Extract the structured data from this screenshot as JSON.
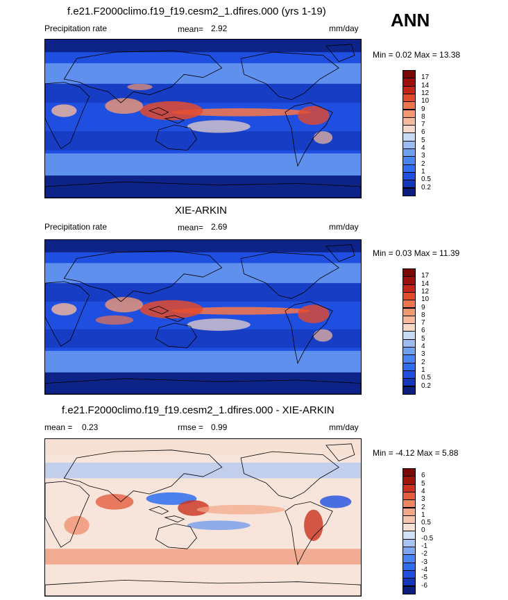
{
  "header": {
    "season": "ANN"
  },
  "panels": [
    {
      "title": "f.e21.F2000climo.f19_f19.cesm2_1.dfires.000 (yrs 1-19)",
      "left_label": "Precipitation rate",
      "stat1_label": "mean=",
      "stat1_value": "2.92",
      "stat2_label": "",
      "stat2_value": "",
      "units": "mm/day",
      "minmax": "Min =   0.02 Max =  13.38",
      "colorbar_labels": [
        "17",
        "14",
        "12",
        "10",
        "9",
        "8",
        "7",
        "6",
        "5",
        "4",
        "3",
        "2",
        "1",
        "0.5",
        "0.2"
      ],
      "map_kind": "model"
    },
    {
      "title": "XIE-ARKIN",
      "left_label": "Precipitation rate",
      "stat1_label": "mean=",
      "stat1_value": "2.69",
      "stat2_label": "",
      "stat2_value": "",
      "units": "mm/day",
      "minmax": "Min =   0.03 Max =  11.39",
      "colorbar_labels": [
        "17",
        "14",
        "12",
        "10",
        "9",
        "8",
        "7",
        "6",
        "5",
        "4",
        "3",
        "2",
        "1",
        "0.5",
        "0.2"
      ],
      "map_kind": "obs"
    },
    {
      "title": "f.e21.F2000climo.f19_f19.cesm2_1.dfires.000 - XIE-ARKIN",
      "left_label": "mean =",
      "stat1_label": "0.23",
      "stat1_value": "",
      "stat2_label": "rmse =",
      "stat2_value": "0.99",
      "units": "mm/day",
      "minmax": "Min =  -4.12 Max =   5.88",
      "colorbar_labels": [
        "6",
        "5",
        "4",
        "3",
        "2",
        "1",
        "0.5",
        "0",
        "-0.5",
        "-1",
        "-2",
        "-3",
        "-4",
        "-5",
        "-6"
      ],
      "map_kind": "diff"
    }
  ],
  "colors": {
    "precip_scale": [
      "#0b1e7d",
      "#1436b8",
      "#1e4fe0",
      "#2d6ef0",
      "#4a86f2",
      "#6fa0f0",
      "#9bbcf2",
      "#c8dbf6",
      "#f5d8c8",
      "#f6b99c",
      "#f39873",
      "#ee7450",
      "#e24a2d",
      "#c42518",
      "#9c0f0c",
      "#7a0606"
    ],
    "diff_scale": [
      "#0b1e7d",
      "#1436b8",
      "#1e4fe0",
      "#2d6ef0",
      "#4a86f2",
      "#7ea6f2",
      "#a9c4f4",
      "#d3e1f7",
      "#f7e0d4",
      "#f6c5ad",
      "#f3a788",
      "#ee8664",
      "#e45e3e",
      "#c9321e",
      "#a1140c",
      "#7a0606"
    ]
  }
}
